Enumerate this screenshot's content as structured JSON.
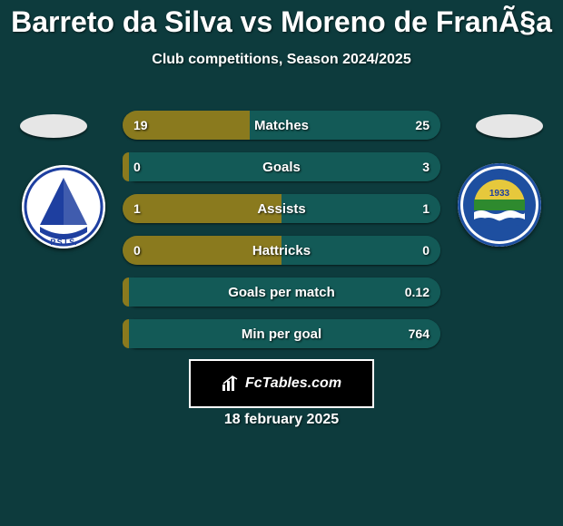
{
  "title": "Barreto da Silva vs Moreno de FranÃ§a",
  "subtitle": "Club competitions, Season 2024/2025",
  "watermark": "FcTables.com",
  "date": "18 february 2025",
  "colors": {
    "background": "#0d3b3d",
    "text": "#ffffff",
    "track": "#135a57",
    "left_fill": "#8a7a1e",
    "right_fill": "#135a57",
    "flag_placeholder": "#e6e6e6",
    "badge_bg": "#ffffff",
    "left_badge_primary": "#1e3fa0",
    "right_badge_blue": "#1e4fa0",
    "right_badge_green": "#2e8a2e",
    "right_badge_yellow": "#e6c83c",
    "right_badge_year": "1933"
  },
  "bars": {
    "trackWidthPx": 350,
    "rows": [
      {
        "label": "Matches",
        "leftValue": "19",
        "rightValue": "25",
        "leftFillPct": 40,
        "rightFillPct": 60
      },
      {
        "label": "Goals",
        "leftValue": "0",
        "rightValue": "3",
        "leftFillPct": 2,
        "rightFillPct": 98
      },
      {
        "label": "Assists",
        "leftValue": "1",
        "rightValue": "1",
        "leftFillPct": 50,
        "rightFillPct": 50
      },
      {
        "label": "Hattricks",
        "leftValue": "0",
        "rightValue": "0",
        "leftFillPct": 50,
        "rightFillPct": 50
      },
      {
        "label": "Goals per match",
        "leftValue": "",
        "rightValue": "0.12",
        "leftFillPct": 2,
        "rightFillPct": 98
      },
      {
        "label": "Min per goal",
        "leftValue": "",
        "rightValue": "764",
        "leftFillPct": 2,
        "rightFillPct": 98
      }
    ]
  }
}
